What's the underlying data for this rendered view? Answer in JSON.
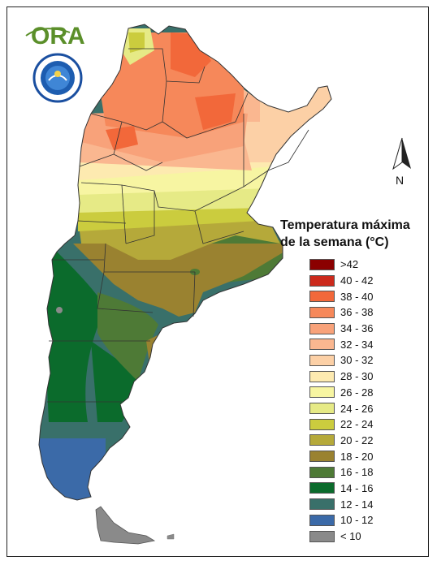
{
  "logo": {
    "text": "ORA"
  },
  "north_arrow": {
    "label": "N"
  },
  "legend": {
    "title_line1": "Temperatura máxima",
    "title_line2": "de la semana (°C)",
    "items": [
      {
        "label": ">42",
        "color": "#8b0000"
      },
      {
        "label": "40 - 42",
        "color": "#cc2a1c"
      },
      {
        "label": "38 - 40",
        "color": "#f2683a"
      },
      {
        "label": "36 - 38",
        "color": "#f6885a"
      },
      {
        "label": "34 - 36",
        "color": "#f8a27a"
      },
      {
        "label": "32 - 34",
        "color": "#fab790"
      },
      {
        "label": "30 - 32",
        "color": "#fcd0a6"
      },
      {
        "label": "28 - 30",
        "color": "#fdeab0"
      },
      {
        "label": "26 - 28",
        "color": "#f7f5a2"
      },
      {
        "label": "24 - 26",
        "color": "#e6ea86"
      },
      {
        "label": "22 - 24",
        "color": "#cbcc3e"
      },
      {
        "label": "20 - 22",
        "color": "#b5a93a"
      },
      {
        "label": "18 - 20",
        "color": "#9a8230"
      },
      {
        "label": "16 - 18",
        "color": "#4e7a36"
      },
      {
        "label": "14 - 16",
        "color": "#0b6b2c"
      },
      {
        "label": "12 - 14",
        "color": "#39706a"
      },
      {
        "label": "10 - 12",
        "color": "#3b6aa8"
      },
      {
        "label": "< 10",
        "color": "#8a8a8a"
      }
    ]
  }
}
